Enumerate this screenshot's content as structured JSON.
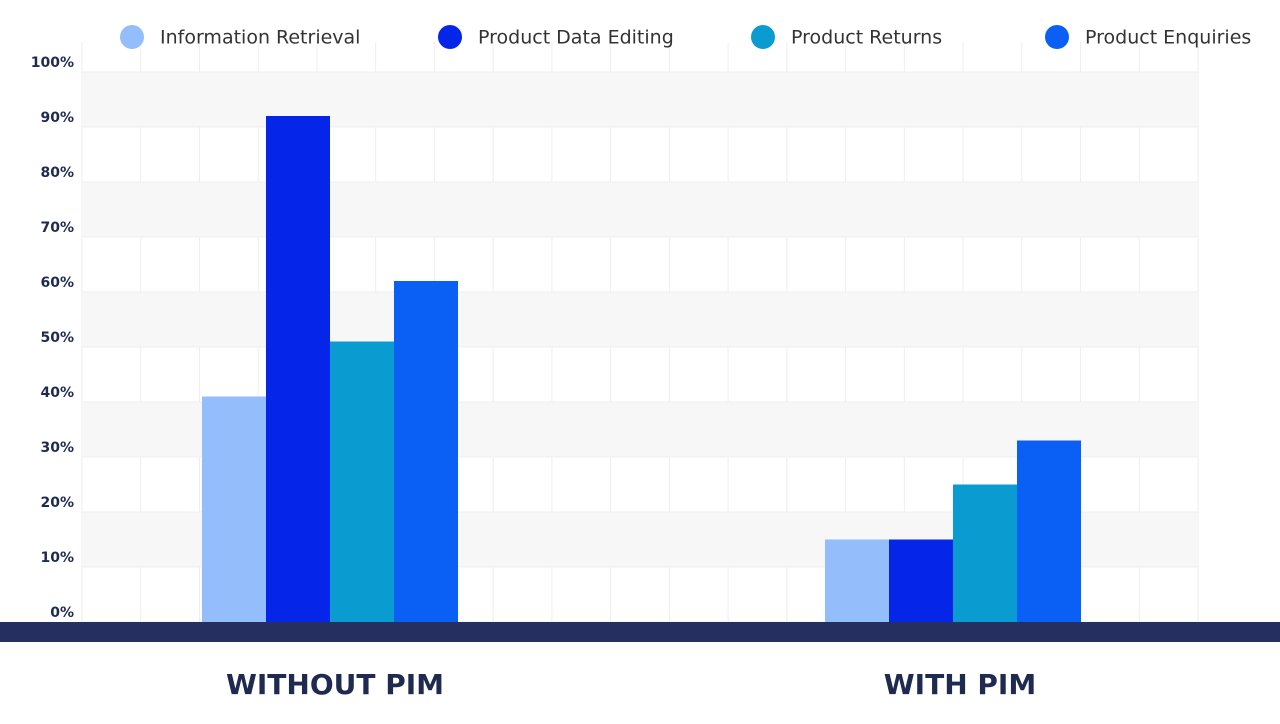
{
  "chart_data": {
    "type": "bar",
    "categories": [
      "WITHOUT PIM",
      "WITH PIM"
    ],
    "series": [
      {
        "name": "Information Retrieval",
        "color": "#93bdfb",
        "values": [
          41,
          15
        ]
      },
      {
        "name": "Product Data Editing",
        "color": "#0526e8",
        "values": [
          92,
          15
        ]
      },
      {
        "name": "Product Returns",
        "color": "#0a9bd0",
        "values": [
          51,
          25
        ]
      },
      {
        "name": "Product Enquiries",
        "color": "#0a5ff5",
        "values": [
          62,
          33
        ]
      }
    ],
    "ylim": [
      0,
      100
    ],
    "yticks": [
      {
        "value": 0,
        "label": "0%"
      },
      {
        "value": 10,
        "label": "10%"
      },
      {
        "value": 20,
        "label": "20%"
      },
      {
        "value": 30,
        "label": "30%"
      },
      {
        "value": 40,
        "label": "40%"
      },
      {
        "value": 50,
        "label": "50%"
      },
      {
        "value": 60,
        "label": "60%"
      },
      {
        "value": 70,
        "label": "70%"
      },
      {
        "value": 80,
        "label": "80%"
      },
      {
        "value": 90,
        "label": "90%"
      },
      {
        "value": 100,
        "label": "100%"
      }
    ],
    "grid": true,
    "legend": "top"
  }
}
